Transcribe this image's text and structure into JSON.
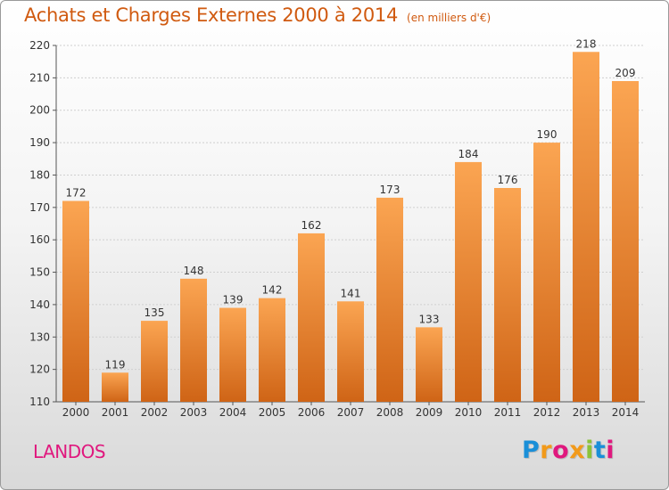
{
  "header": {
    "title": "Achats et Charges Externes 2000 à 2014",
    "unit": "(en milliers d'€)"
  },
  "location": "LANDOS",
  "logo": {
    "letters": [
      "P",
      "r",
      "o",
      "x",
      "i",
      "t",
      "i"
    ],
    "colors": [
      "#1a8fd8",
      "#f29a1a",
      "#e0187e",
      "#f29a1a",
      "#8bc33a",
      "#1a8fd8",
      "#e0187e"
    ]
  },
  "colors": {
    "title": "#d05a10",
    "bar_light": "#fba552",
    "bar_dark": "#cf6416",
    "location": "#e0187e"
  },
  "chart_data": {
    "type": "bar",
    "title": "Achats et Charges Externes 2000 à 2014",
    "xlabel": "",
    "ylabel": "",
    "categories": [
      "2000",
      "2001",
      "2002",
      "2003",
      "2004",
      "2005",
      "2006",
      "2007",
      "2008",
      "2009",
      "2010",
      "2011",
      "2012",
      "2013",
      "2014"
    ],
    "values": [
      172,
      119,
      135,
      148,
      139,
      142,
      162,
      141,
      173,
      133,
      184,
      176,
      190,
      218,
      209
    ],
    "ylim": [
      110,
      220
    ],
    "yticks": [
      110,
      120,
      130,
      140,
      150,
      160,
      170,
      180,
      190,
      200,
      210,
      220
    ],
    "grid": true,
    "data_labels": true
  }
}
